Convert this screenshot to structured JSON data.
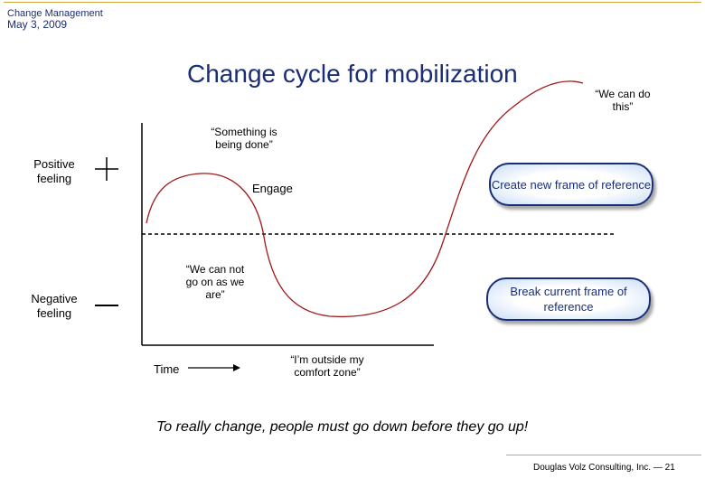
{
  "header": {
    "subtitle": "Change Management",
    "date": "May 3, 2009"
  },
  "title": "Change cycle for mobilization",
  "axis": {
    "positive_label": "Positive feeling",
    "negative_label": "Negative feeling",
    "plus_sign": "+",
    "minus_sign": "—",
    "time_label": "Time"
  },
  "quotes": {
    "something_done": "“Something is being done”",
    "engage": "Engage",
    "cannot_go_on": "“We can not go on as we are”",
    "outside_comfort": "“I’m outside my comfort zone”",
    "we_can_do": "“We can do this”"
  },
  "bubbles": {
    "create_frame": "Create new frame of reference",
    "break_frame": "Break current frame of reference"
  },
  "tagline": "To really change, people must go down before they go up!",
  "footer": {
    "company": "Douglas Volz Consulting, Inc.",
    "separator": "—",
    "page": "21"
  },
  "colors": {
    "title": "#1a2e78",
    "curve": "#a01818",
    "accent_line": "#d4a93b"
  }
}
